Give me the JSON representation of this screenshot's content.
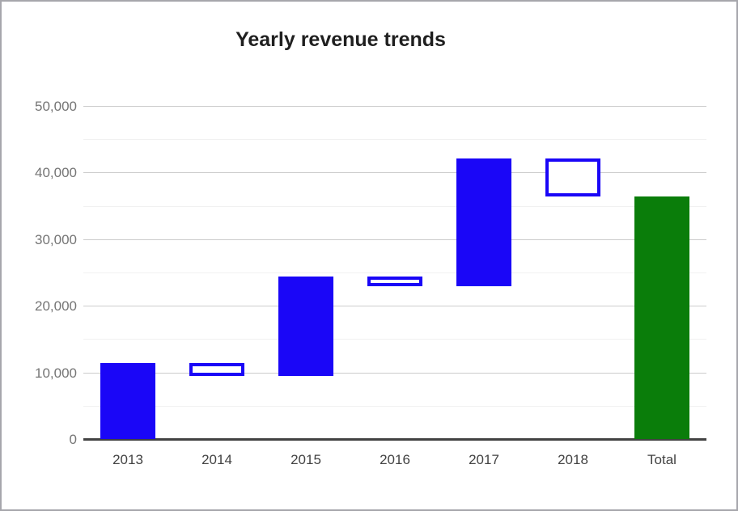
{
  "window": {
    "background": "#ffffff",
    "frame_border_color": "#a7a7ac"
  },
  "chart_data": {
    "type": "bar",
    "subtype": "waterfall",
    "title": "Yearly revenue trends",
    "categories": [
      "2013",
      "2014",
      "2015",
      "2016",
      "2017",
      "2018",
      "Total"
    ],
    "bars": [
      {
        "label": "2013",
        "start": 0,
        "end": 11500,
        "delta": 11500,
        "kind": "increase"
      },
      {
        "label": "2014",
        "start": 11500,
        "end": 9500,
        "delta": -2000,
        "kind": "decrease"
      },
      {
        "label": "2015",
        "start": 9500,
        "end": 24500,
        "delta": 15000,
        "kind": "increase"
      },
      {
        "label": "2016",
        "start": 24500,
        "end": 23000,
        "delta": -1500,
        "kind": "decrease"
      },
      {
        "label": "2017",
        "start": 23000,
        "end": 42200,
        "delta": 19200,
        "kind": "increase"
      },
      {
        "label": "2018",
        "start": 42200,
        "end": 36500,
        "delta": -5700,
        "kind": "decrease"
      },
      {
        "label": "Total",
        "start": 0,
        "end": 36500,
        "delta": 36500,
        "kind": "total"
      }
    ],
    "xlabel": "",
    "ylabel": "",
    "ylim": [
      0,
      50000
    ],
    "y_major_ticks": [
      0,
      10000,
      20000,
      30000,
      40000,
      50000
    ],
    "y_tick_labels": [
      "0",
      "10,000",
      "20,000",
      "30,000",
      "40,000",
      "50,000"
    ],
    "y_minor_step": 5000,
    "grid": true,
    "legend_position": "none",
    "colors": {
      "increase_fill": "#1a06f7",
      "decrease_fill": "#ffffff",
      "decrease_border": "#1a06f7",
      "total_fill": "#0a7d0a",
      "major_gridline": "#cccccc",
      "minor_gridline": "#f1f1f1",
      "zero_axis": "#424242",
      "y_label_color": "#757575",
      "x_label_color": "#424242",
      "title_color": "#1f1f1f"
    }
  }
}
